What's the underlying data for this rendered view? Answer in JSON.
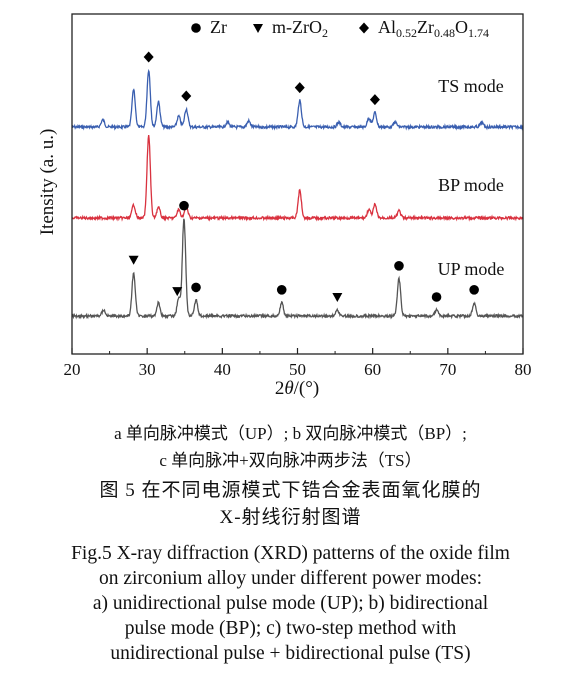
{
  "chart_data": {
    "type": "line",
    "xlabel": "2θ/(°)",
    "ylabel": "Itensity (a. u.)",
    "xlim": [
      20,
      80
    ],
    "xticks": [
      20,
      30,
      40,
      50,
      60,
      70,
      80
    ],
    "legend": {
      "placement": "top",
      "entries": [
        {
          "marker": "circle",
          "label_parts": [
            {
              "t": "Zr",
              "s": ""
            }
          ]
        },
        {
          "marker": "triangle-down",
          "label_parts": [
            {
              "t": "m-ZrO",
              "s": ""
            },
            {
              "t": "2",
              "s": "sub"
            }
          ]
        },
        {
          "marker": "diamond",
          "label_parts": [
            {
              "t": "Al",
              "s": ""
            },
            {
              "t": "0.52",
              "s": "sub"
            },
            {
              "t": "Zr",
              "s": ""
            },
            {
              "t": "0.48",
              "s": "sub"
            },
            {
              "t": "O",
              "s": ""
            },
            {
              "t": "1.74",
              "s": "sub"
            }
          ]
        }
      ]
    },
    "series": [
      {
        "name": "TS mode",
        "color": "#3a5fb0",
        "peaks": [
          {
            "x": 24.1,
            "h": 0.12
          },
          {
            "x": 28.2,
            "h": 0.62
          },
          {
            "x": 30.2,
            "h": 0.95
          },
          {
            "x": 31.5,
            "h": 0.42
          },
          {
            "x": 34.2,
            "h": 0.18
          },
          {
            "x": 35.2,
            "h": 0.3
          },
          {
            "x": 40.7,
            "h": 0.08
          },
          {
            "x": 43.5,
            "h": 0.1
          },
          {
            "x": 50.3,
            "h": 0.44
          },
          {
            "x": 55.5,
            "h": 0.08
          },
          {
            "x": 59.5,
            "h": 0.15
          },
          {
            "x": 60.3,
            "h": 0.24
          },
          {
            "x": 63.0,
            "h": 0.08
          },
          {
            "x": 74.5,
            "h": 0.07
          }
        ],
        "markers": [
          {
            "x": 30.2,
            "type": "diamond"
          },
          {
            "x": 35.2,
            "type": "diamond"
          },
          {
            "x": 50.3,
            "type": "diamond"
          },
          {
            "x": 60.3,
            "type": "diamond"
          }
        ]
      },
      {
        "name": "BP mode",
        "color": "#d9323f",
        "peaks": [
          {
            "x": 28.2,
            "h": 0.22
          },
          {
            "x": 30.2,
            "h": 1.38
          },
          {
            "x": 31.5,
            "h": 0.18
          },
          {
            "x": 34.2,
            "h": 0.14
          },
          {
            "x": 35.2,
            "h": 0.19
          },
          {
            "x": 50.3,
            "h": 0.46
          },
          {
            "x": 59.5,
            "h": 0.14
          },
          {
            "x": 60.3,
            "h": 0.22
          },
          {
            "x": 63.5,
            "h": 0.12
          }
        ],
        "markers": []
      },
      {
        "name": "UP mode",
        "color": "#555555",
        "peaks": [
          {
            "x": 24.2,
            "h": 0.1
          },
          {
            "x": 28.2,
            "h": 0.72
          },
          {
            "x": 31.5,
            "h": 0.22
          },
          {
            "x": 34.2,
            "h": 0.3
          },
          {
            "x": 34.9,
            "h": 1.62
          },
          {
            "x": 36.5,
            "h": 0.26
          },
          {
            "x": 47.9,
            "h": 0.22
          },
          {
            "x": 55.3,
            "h": 0.1
          },
          {
            "x": 63.5,
            "h": 0.62
          },
          {
            "x": 68.5,
            "h": 0.1
          },
          {
            "x": 73.5,
            "h": 0.22
          }
        ],
        "markers": [
          {
            "x": 28.2,
            "type": "triangle"
          },
          {
            "x": 34.0,
            "type": "triangle"
          },
          {
            "x": 34.9,
            "type": "circle"
          },
          {
            "x": 36.5,
            "type": "circle"
          },
          {
            "x": 47.9,
            "type": "circle"
          },
          {
            "x": 55.3,
            "type": "triangle"
          },
          {
            "x": 63.5,
            "type": "circle"
          },
          {
            "x": 68.5,
            "type": "circle"
          },
          {
            "x": 73.5,
            "type": "circle"
          }
        ]
      }
    ]
  },
  "caption": {
    "notes_line1": "a  单向脉冲模式（UP）;  b  双向脉冲模式（BP）;",
    "notes_line2": "c  单向脉冲+双向脉冲两步法（TS）",
    "title_cn_line1": "图 5    在不同电源模式下锆合金表面氧化膜的",
    "title_cn_line2": "X-射线衍射图谱",
    "title_en_line1": "Fig.5 X-ray diffraction (XRD) patterns of the oxide film",
    "title_en_line2": "on zirconium alloy under different power modes:",
    "title_en_line3": "a) unidirectional pulse mode (UP); b) bidirectional",
    "title_en_line4": "pulse mode (BP); c) two-step method with",
    "title_en_line5": "unidirectional pulse + bidirectional pulse (TS)"
  }
}
